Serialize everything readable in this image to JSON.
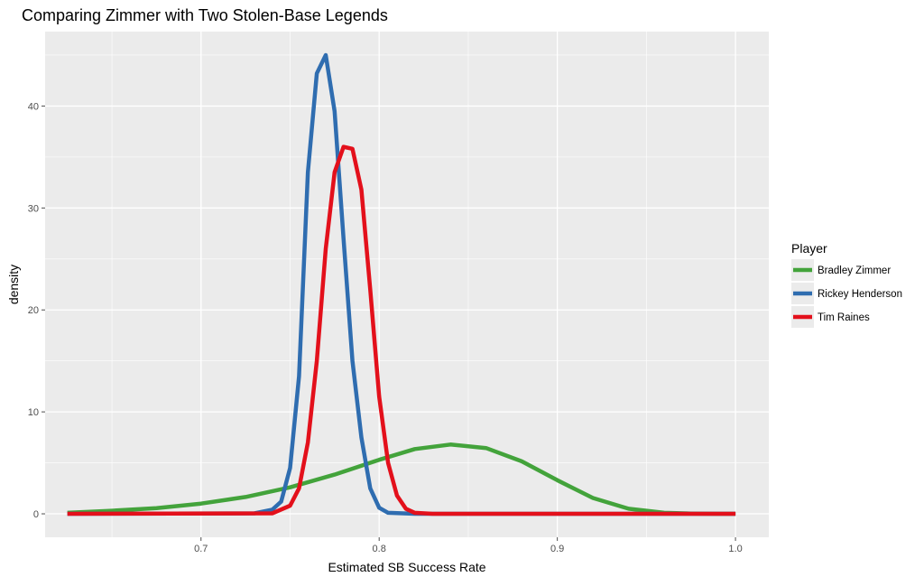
{
  "chart_data": {
    "type": "line",
    "title": "Comparing Zimmer with Two Stolen-Base Legends",
    "xlabel": "Estimated SB Success Rate",
    "ylabel": "density",
    "xlim": [
      0.6125,
      1.0187
    ],
    "ylim": [
      -2.3,
      47.3
    ],
    "x_ticks": [
      {
        "value": 0.7,
        "label": "0.7"
      },
      {
        "value": 0.8,
        "label": "0.8"
      },
      {
        "value": 0.9,
        "label": "0.9"
      },
      {
        "value": 1.0,
        "label": "1.0"
      }
    ],
    "y_ticks": [
      {
        "value": 0,
        "label": "0"
      },
      {
        "value": 10,
        "label": "10"
      },
      {
        "value": 20,
        "label": "20"
      },
      {
        "value": 30,
        "label": "30"
      },
      {
        "value": 40,
        "label": "40"
      }
    ],
    "grid": true,
    "legend": {
      "title": "Player",
      "position": "right"
    },
    "series": [
      {
        "name": "Bradley Zimmer",
        "color": "#43a33b",
        "x": [
          0.625,
          0.65,
          0.675,
          0.7,
          0.725,
          0.75,
          0.775,
          0.8,
          0.82,
          0.84,
          0.86,
          0.88,
          0.9,
          0.92,
          0.94,
          0.96,
          0.975,
          0.99,
          1.0
        ],
        "y": [
          0.1,
          0.3,
          0.55,
          1.0,
          1.65,
          2.6,
          3.85,
          5.3,
          6.35,
          6.8,
          6.45,
          5.15,
          3.3,
          1.55,
          0.5,
          0.1,
          0.03,
          0.0,
          0.0
        ]
      },
      {
        "name": "Rickey Henderson",
        "color": "#2f6db0",
        "x": [
          0.625,
          0.73,
          0.74,
          0.745,
          0.75,
          0.755,
          0.76,
          0.765,
          0.77,
          0.775,
          0.78,
          0.785,
          0.79,
          0.795,
          0.8,
          0.805,
          0.82,
          1.0
        ],
        "y": [
          0,
          0.05,
          0.4,
          1.2,
          4.5,
          13.5,
          33.5,
          43.2,
          45.0,
          39.5,
          27.0,
          15.0,
          7.5,
          2.5,
          0.6,
          0.1,
          0.0,
          0.0
        ]
      },
      {
        "name": "Tim Raines",
        "color": "#e3101b",
        "x": [
          0.625,
          0.74,
          0.75,
          0.755,
          0.76,
          0.765,
          0.77,
          0.775,
          0.78,
          0.785,
          0.79,
          0.795,
          0.8,
          0.805,
          0.81,
          0.815,
          0.82,
          0.83,
          1.0
        ],
        "y": [
          0,
          0.05,
          0.8,
          2.5,
          7.0,
          15.0,
          26.0,
          33.5,
          36.0,
          35.8,
          31.8,
          22.0,
          11.5,
          5.0,
          1.8,
          0.5,
          0.1,
          0.0,
          0.0
        ]
      }
    ]
  }
}
